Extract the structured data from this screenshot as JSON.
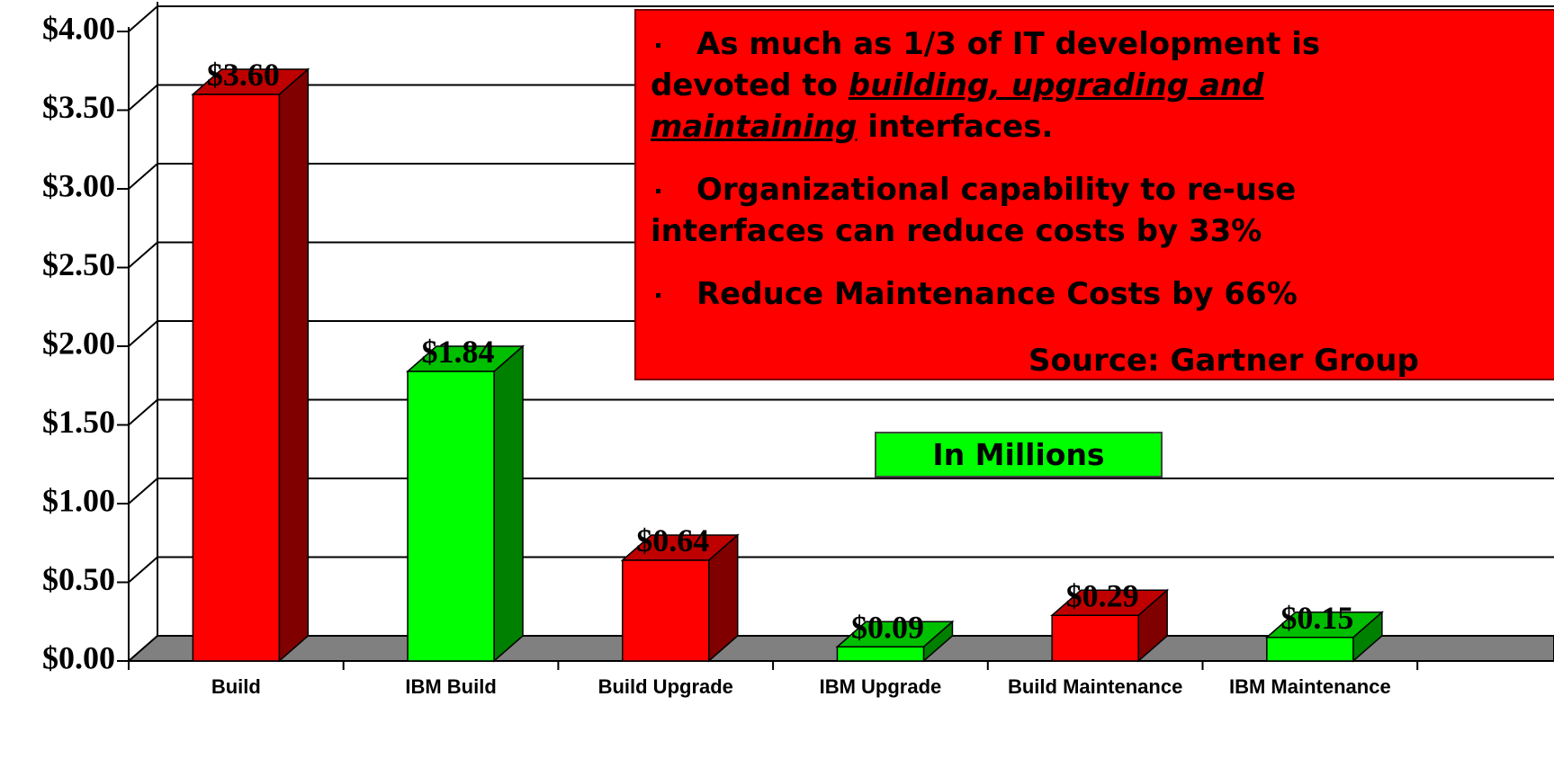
{
  "chart_data": {
    "type": "bar3d",
    "categories": [
      "Build",
      "IBM Build",
      "Build Upgrade",
      "IBM Upgrade",
      "Build Maintenance",
      "IBM Maintenance"
    ],
    "values": [
      3.6,
      1.84,
      0.64,
      0.09,
      0.29,
      0.15
    ],
    "value_labels": [
      "$3.60",
      "$1.84",
      "$0.64",
      "$0.09",
      "$0.29",
      "$0.15"
    ],
    "colors": [
      "#ff0000",
      "#00ff00",
      "#ff0000",
      "#00ff00",
      "#ff0000",
      "#00ff00"
    ],
    "ylim": [
      0,
      4
    ],
    "yticks": [
      {
        "value": 0,
        "label": "$0.00"
      },
      {
        "value": 0.5,
        "label": "$0.50"
      },
      {
        "value": 1,
        "label": "$1.00"
      },
      {
        "value": 1.5,
        "label": "$1.50"
      },
      {
        "value": 2,
        "label": "$2.00"
      },
      {
        "value": 2.5,
        "label": "$2.50"
      },
      {
        "value": 3,
        "label": "$3.00"
      },
      {
        "value": 3.5,
        "label": "$3.50"
      },
      {
        "value": 4,
        "label": "$4.00"
      }
    ],
    "grid": true,
    "annotation": {
      "bullets": [
        [
          "As much as 1/3 of IT development is devoted to ",
          "building, upgrading and maintaining",
          " interfaces."
        ],
        [
          "Organizational capability to re-use interfaces can reduce costs by 33%"
        ],
        [
          "Reduce Maintenance Costs by 66%"
        ]
      ],
      "source": "Source: Gartner Group"
    },
    "unit_note": "In Millions"
  }
}
